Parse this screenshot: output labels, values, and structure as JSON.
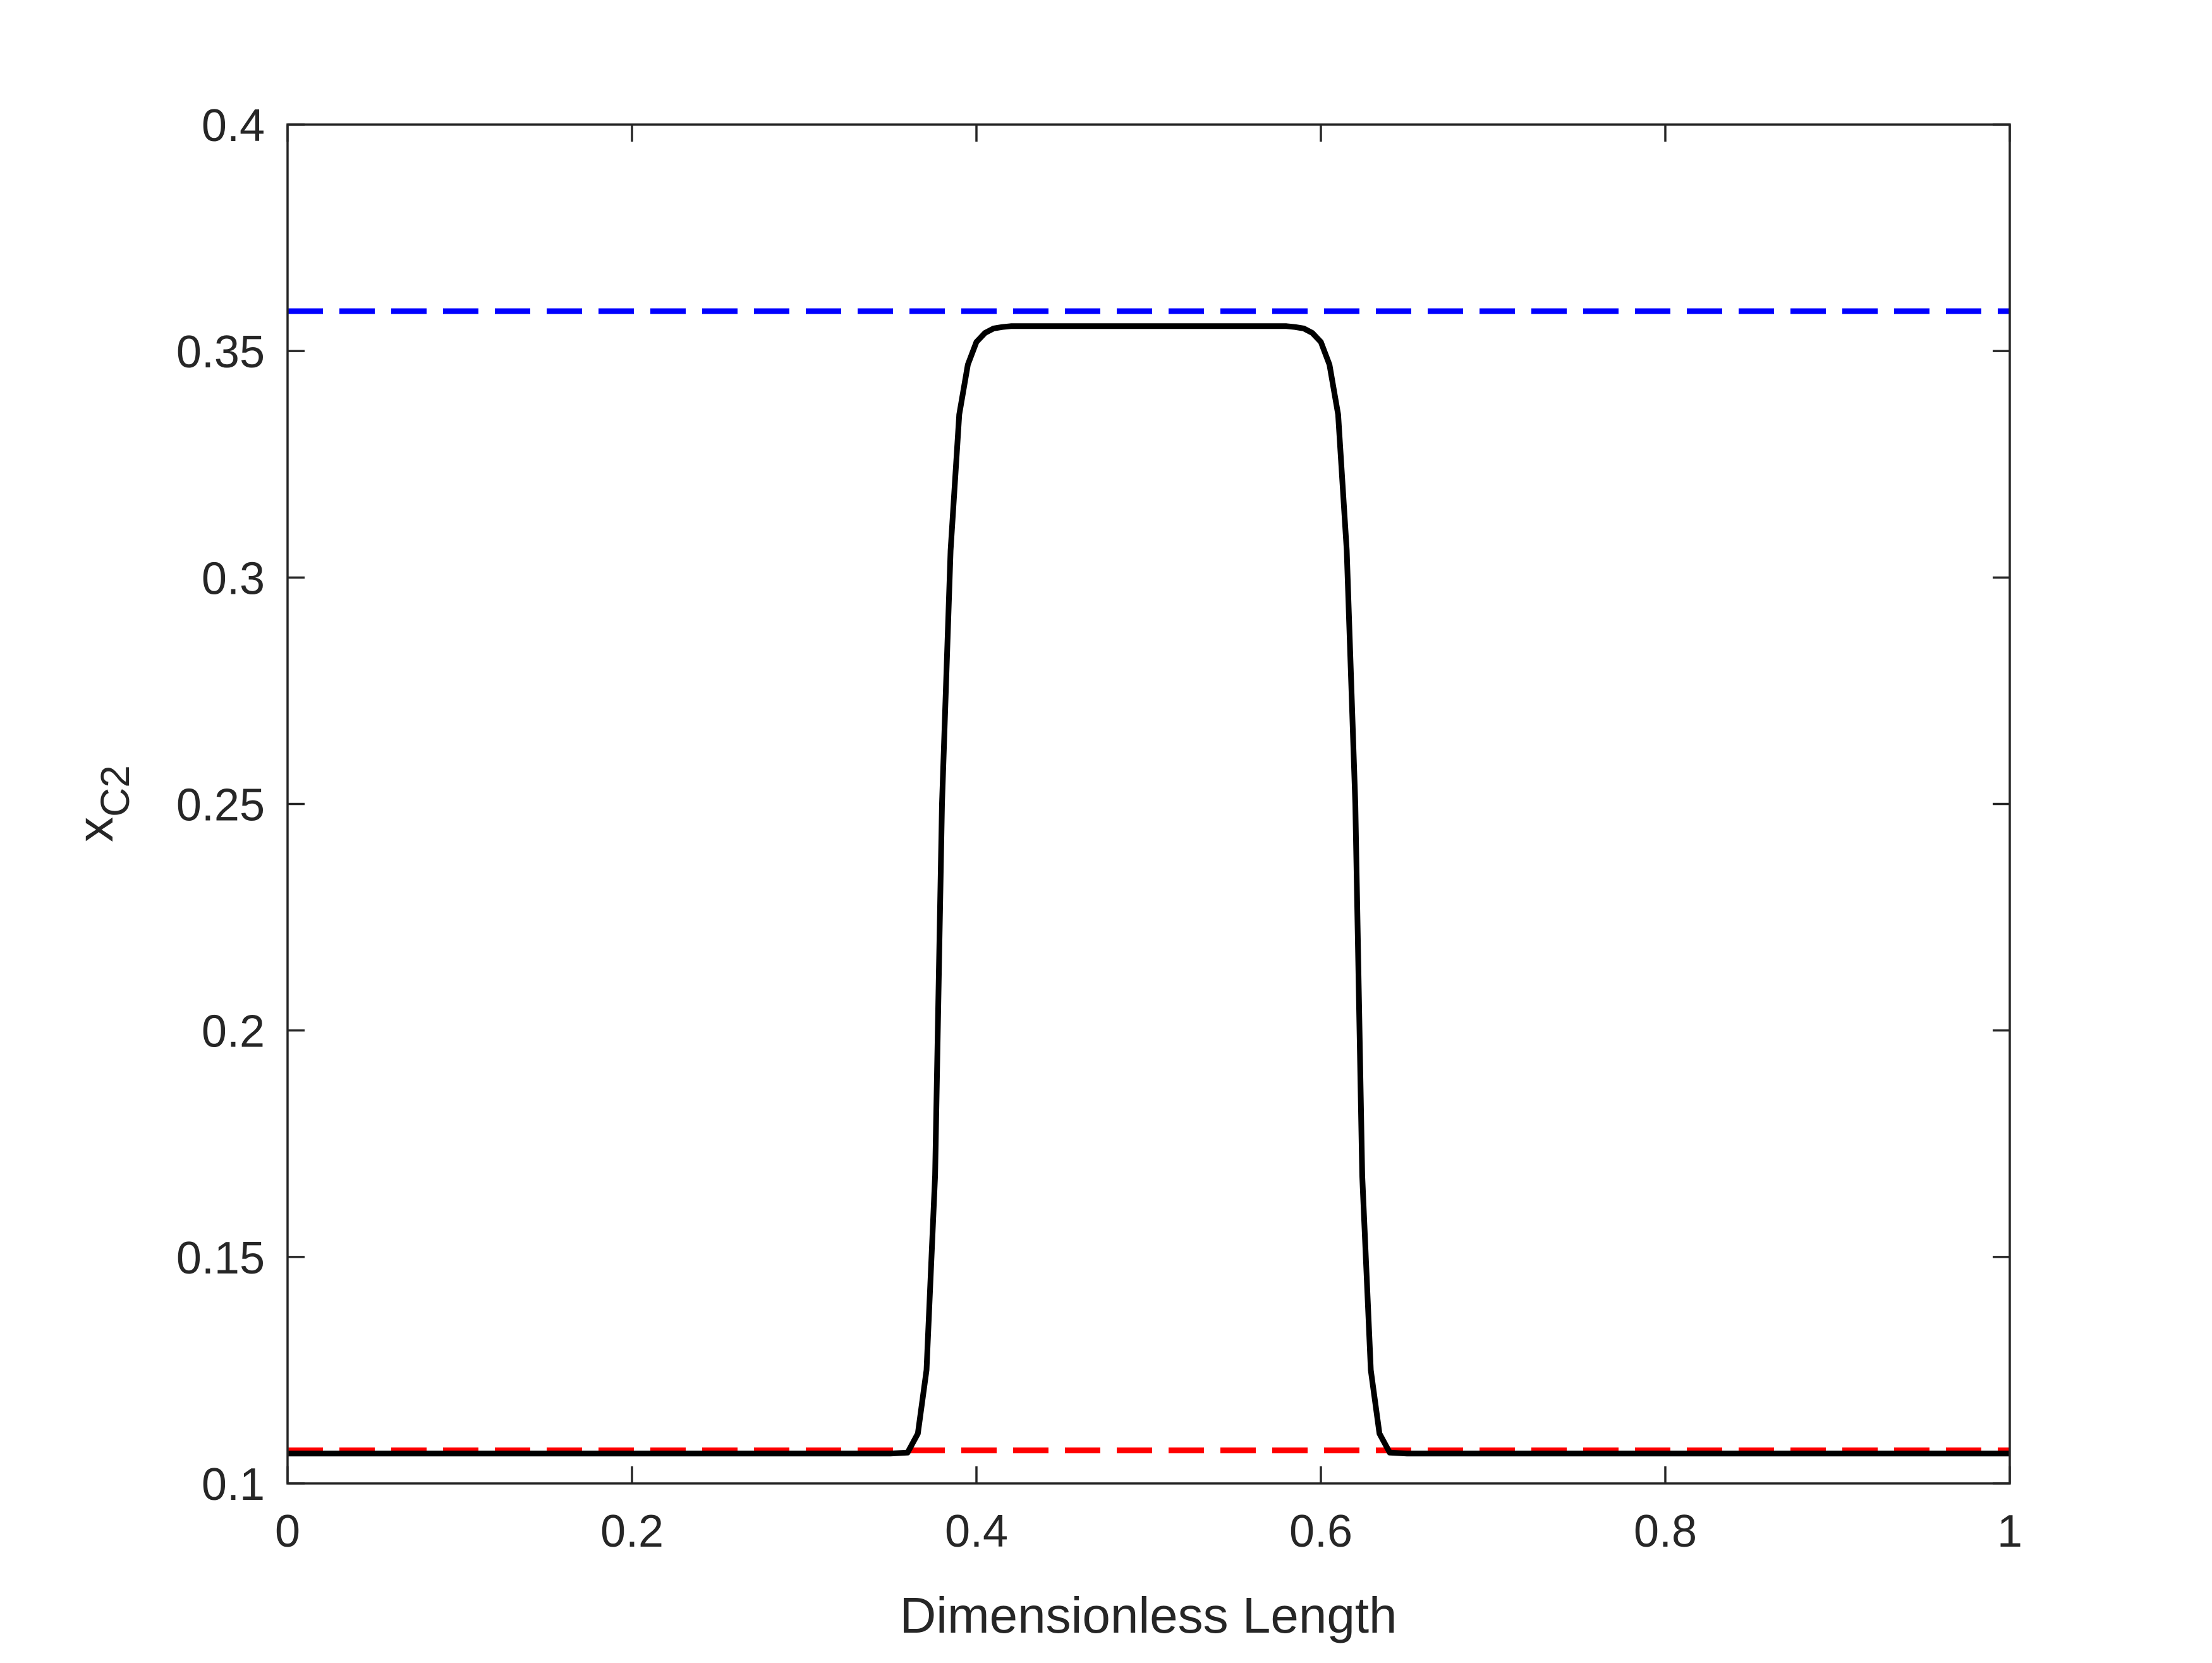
{
  "chart_data": {
    "type": "line",
    "title": "",
    "xlabel": "Dimensionless Length",
    "ylabel": "x",
    "ylabel_subscript": "C2",
    "xlim": [
      0,
      1
    ],
    "ylim": [
      0.1,
      0.4
    ],
    "xticks": [
      0,
      0.2,
      0.4,
      0.6,
      0.8,
      1
    ],
    "xtick_labels": [
      "0",
      "0.2",
      "0.4",
      "0.6",
      "0.8",
      "1"
    ],
    "yticks": [
      0.1,
      0.15,
      0.2,
      0.25,
      0.3,
      0.35,
      0.4
    ],
    "ytick_labels": [
      "0.1",
      "0.15",
      "0.2",
      "0.25",
      "0.3",
      "0.35",
      "0.4"
    ],
    "grid": false,
    "legend": "none",
    "series": [
      {
        "color": "#0000ff",
        "style": "dashed",
        "x": [
          0,
          1
        ],
        "y": [
          0.3588,
          0.3588
        ]
      },
      {
        "color": "#ff0000",
        "style": "dashed",
        "x": [
          0,
          1
        ],
        "y": [
          0.1073,
          0.1073
        ]
      },
      {
        "color": "#000000",
        "style": "solid",
        "x": [
          0,
          0.1,
          0.2,
          0.3,
          0.35,
          0.36,
          0.366,
          0.371,
          0.376,
          0.38,
          0.385,
          0.39,
          0.395,
          0.4,
          0.405,
          0.41,
          0.415,
          0.42,
          0.45,
          0.5,
          0.55,
          0.58,
          0.585,
          0.59,
          0.595,
          0.6,
          0.605,
          0.61,
          0.615,
          0.62,
          0.624,
          0.629,
          0.634,
          0.64,
          0.65,
          0.7,
          0.8,
          0.9,
          1
        ],
        "y": [
          0.1066,
          0.1066,
          0.1066,
          0.1066,
          0.1066,
          0.1068,
          0.111,
          0.125,
          0.168,
          0.25,
          0.306,
          0.336,
          0.347,
          0.352,
          0.354,
          0.355,
          0.3553,
          0.3555,
          0.3555,
          0.3555,
          0.3555,
          0.3555,
          0.3553,
          0.355,
          0.354,
          0.352,
          0.347,
          0.336,
          0.306,
          0.25,
          0.168,
          0.125,
          0.111,
          0.1068,
          0.1066,
          0.1066,
          0.1066,
          0.1066,
          0.1066
        ]
      }
    ]
  }
}
